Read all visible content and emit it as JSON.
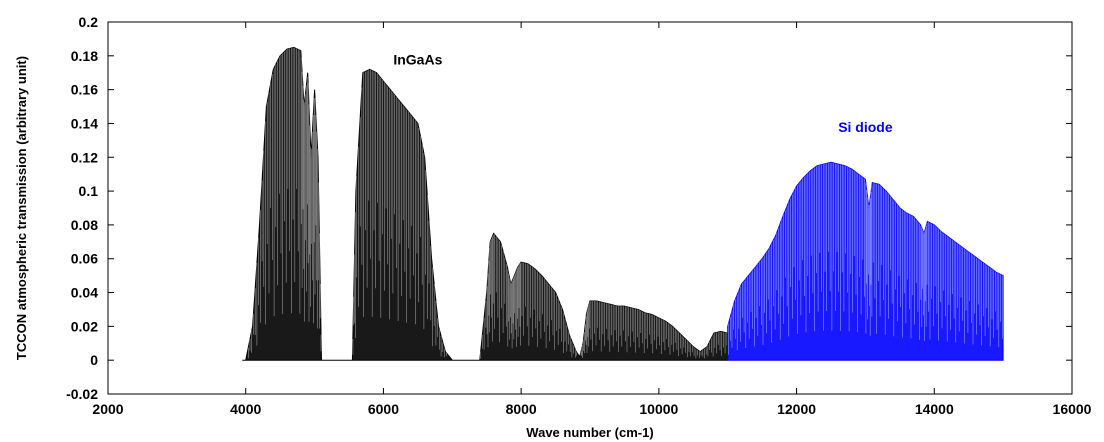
{
  "chart_data": {
    "type": "line",
    "title": "",
    "xlabel": "Wave number (cm-1)",
    "ylabel": "TCCON atmospheric transmission (arbitrary unit)",
    "xlim": [
      2000,
      16000
    ],
    "ylim": [
      -0.02,
      0.2
    ],
    "xticks": [
      2000,
      4000,
      6000,
      8000,
      10000,
      12000,
      14000,
      16000
    ],
    "yticks": [
      -0.02,
      0,
      0.02,
      0.04,
      0.06,
      0.08,
      0.1,
      0.12,
      0.14,
      0.16,
      0.18,
      0.2
    ],
    "ytick_labels": [
      "-0.02",
      "0",
      "0.02",
      "0.04",
      "0.06",
      "0.08",
      "0.1",
      "0.12",
      "0.14",
      "0.16",
      "0.18",
      "0.2"
    ],
    "grid": false,
    "annotations": [
      {
        "text": "InGaAs",
        "x": 6500,
        "y": 0.175,
        "color": "#000000"
      },
      {
        "text": "Si diode",
        "x": 13000,
        "y": 0.135,
        "color": "#0000ff"
      }
    ],
    "series": [
      {
        "color": "#000000",
        "x": [
          3950,
          4000,
          4100,
          4200,
          4300,
          4400,
          4500,
          4600,
          4700,
          4800,
          4850,
          4900,
          4950,
          5000,
          5050,
          5100,
          5200,
          5400,
          5550,
          5600,
          5700,
          5800,
          5900,
          6000,
          6100,
          6200,
          6300,
          6400,
          6500,
          6600,
          6700,
          6800,
          6900,
          7000,
          7200,
          7400,
          7500,
          7550,
          7600,
          7700,
          7800,
          7850,
          7900,
          7950,
          8000,
          8100,
          8200,
          8300,
          8400,
          8500,
          8600,
          8700,
          8800,
          8850,
          8900,
          8950,
          9000,
          9100,
          9200,
          9300,
          9400,
          9500,
          9600,
          9700,
          9800,
          9900,
          10000,
          10100,
          10200,
          10300,
          10400,
          10500,
          10600,
          10700,
          10800,
          10900,
          11000
        ],
        "values": [
          0,
          0,
          0.02,
          0.08,
          0.15,
          0.172,
          0.18,
          0.184,
          0.185,
          0.183,
          0.15,
          0.17,
          0.12,
          0.16,
          0.12,
          0,
          0,
          0,
          0,
          0.1,
          0.17,
          0.172,
          0.17,
          0.165,
          0.16,
          0.155,
          0.15,
          0.145,
          0.14,
          0.12,
          0.06,
          0.02,
          0.005,
          0,
          0,
          0,
          0.04,
          0.07,
          0.075,
          0.07,
          0.055,
          0.045,
          0.05,
          0.055,
          0.058,
          0.057,
          0.054,
          0.05,
          0.045,
          0.04,
          0.03,
          0.015,
          0.005,
          0.002,
          0.01,
          0.028,
          0.035,
          0.035,
          0.034,
          0.033,
          0.032,
          0.032,
          0.031,
          0.03,
          0.028,
          0.027,
          0.025,
          0.023,
          0.02,
          0.016,
          0.012,
          0.008,
          0.005,
          0.008,
          0.016,
          0.017,
          0.016
        ]
      },
      {
        "color": "#0000ff",
        "x": [
          11000,
          11100,
          11200,
          11300,
          11400,
          11500,
          11600,
          11700,
          11800,
          11900,
          12000,
          12100,
          12200,
          12300,
          12400,
          12500,
          12600,
          12700,
          12800,
          12900,
          13000,
          13050,
          13100,
          13200,
          13300,
          13400,
          13500,
          13600,
          13700,
          13800,
          13850,
          13900,
          14000,
          14100,
          14200,
          14300,
          14400,
          14500,
          14600,
          14700,
          14800,
          14900,
          15000
        ],
        "values": [
          0.02,
          0.035,
          0.045,
          0.05,
          0.055,
          0.06,
          0.066,
          0.074,
          0.085,
          0.095,
          0.103,
          0.108,
          0.112,
          0.115,
          0.116,
          0.117,
          0.116,
          0.115,
          0.113,
          0.11,
          0.107,
          0.09,
          0.105,
          0.104,
          0.1,
          0.095,
          0.09,
          0.087,
          0.085,
          0.08,
          0.075,
          0.082,
          0.08,
          0.076,
          0.073,
          0.07,
          0.067,
          0.064,
          0.061,
          0.058,
          0.055,
          0.052,
          0.05
        ]
      }
    ]
  }
}
